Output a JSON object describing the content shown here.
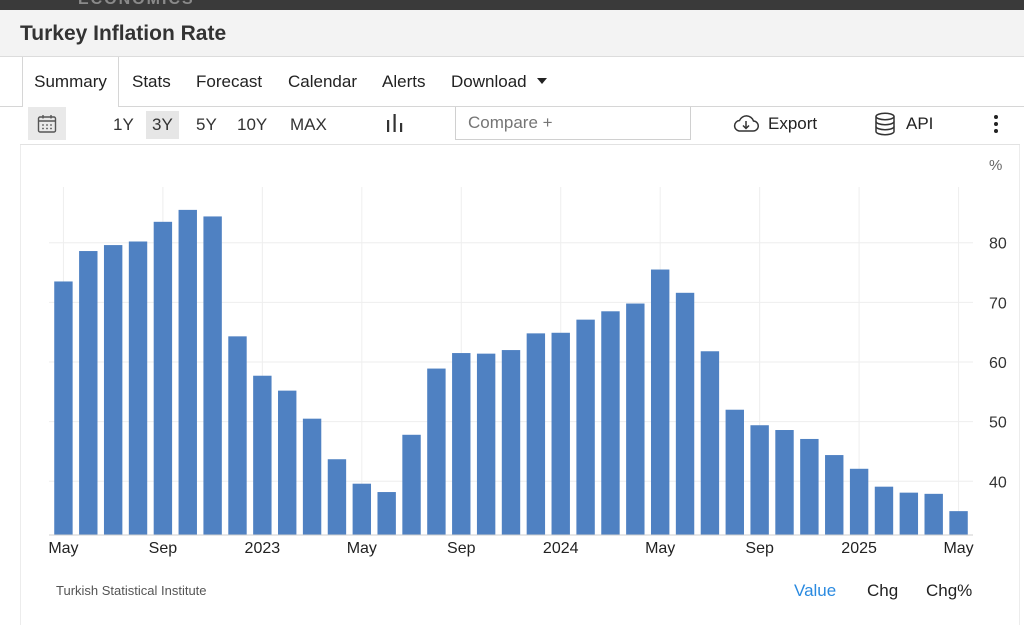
{
  "header": {
    "brand_fragment": "ECONOMICS",
    "title": "Turkey Inflation Rate"
  },
  "tabs": [
    {
      "label": "Summary",
      "active": true
    },
    {
      "label": "Stats"
    },
    {
      "label": "Forecast"
    },
    {
      "label": "Calendar"
    },
    {
      "label": "Alerts"
    },
    {
      "label": "Download",
      "dropdown": true
    }
  ],
  "toolbar": {
    "calendar_icon": "calendar-icon",
    "ranges": [
      "1Y",
      "3Y",
      "5Y",
      "10Y",
      "MAX"
    ],
    "active_range": "3Y",
    "chart_type_icon": "bar-chart-icon",
    "compare_placeholder": "Compare +",
    "export_label": "Export",
    "api_label": "API"
  },
  "footer": {
    "source": "Turkish Statistical Institute",
    "value_label": "Value",
    "chg_label": "Chg",
    "chgpct_label": "Chg%"
  },
  "colors": {
    "bar": "#4f81c2",
    "active_link": "#2a8ae0"
  },
  "chart_data": {
    "type": "bar",
    "unit": "%",
    "categories": [
      "May 2022",
      "Jun 2022",
      "Jul 2022",
      "Aug 2022",
      "Sep 2022",
      "Oct 2022",
      "Nov 2022",
      "Dec 2022",
      "Jan 2023",
      "Feb 2023",
      "Mar 2023",
      "Apr 2023",
      "May 2023",
      "Jun 2023",
      "Jul 2023",
      "Aug 2023",
      "Sep 2023",
      "Oct 2023",
      "Nov 2023",
      "Dec 2023",
      "Jan 2024",
      "Feb 2024",
      "Mar 2024",
      "Apr 2024",
      "May 2024",
      "Jun 2024",
      "Jul 2024",
      "Aug 2024",
      "Sep 2024",
      "Oct 2024",
      "Nov 2024",
      "Dec 2024",
      "Jan 2025",
      "Feb 2025",
      "Mar 2025",
      "Apr 2025",
      "May 2025"
    ],
    "values": [
      73.5,
      78.6,
      79.6,
      80.2,
      83.5,
      85.5,
      84.4,
      64.3,
      57.7,
      55.2,
      50.5,
      43.7,
      39.6,
      38.2,
      47.8,
      58.9,
      61.5,
      61.4,
      62.0,
      64.8,
      64.9,
      67.1,
      68.5,
      69.8,
      75.5,
      71.6,
      61.8,
      52.0,
      49.4,
      48.6,
      47.1,
      44.4,
      42.1,
      39.1,
      38.1,
      37.9,
      35.0
    ],
    "x_tick_labels": [
      {
        "label": "May",
        "index": 0
      },
      {
        "label": "Sep",
        "index": 4
      },
      {
        "label": "2023",
        "index": 8
      },
      {
        "label": "May",
        "index": 12
      },
      {
        "label": "Sep",
        "index": 16
      },
      {
        "label": "2024",
        "index": 20
      },
      {
        "label": "May",
        "index": 24
      },
      {
        "label": "Sep",
        "index": 28
      },
      {
        "label": "2025",
        "index": 32
      },
      {
        "label": "May",
        "index": 36
      }
    ],
    "y_ticks": [
      40,
      50,
      60,
      70,
      80
    ],
    "ylim": [
      31,
      89
    ],
    "y_axis_side": "right",
    "grid": true
  }
}
